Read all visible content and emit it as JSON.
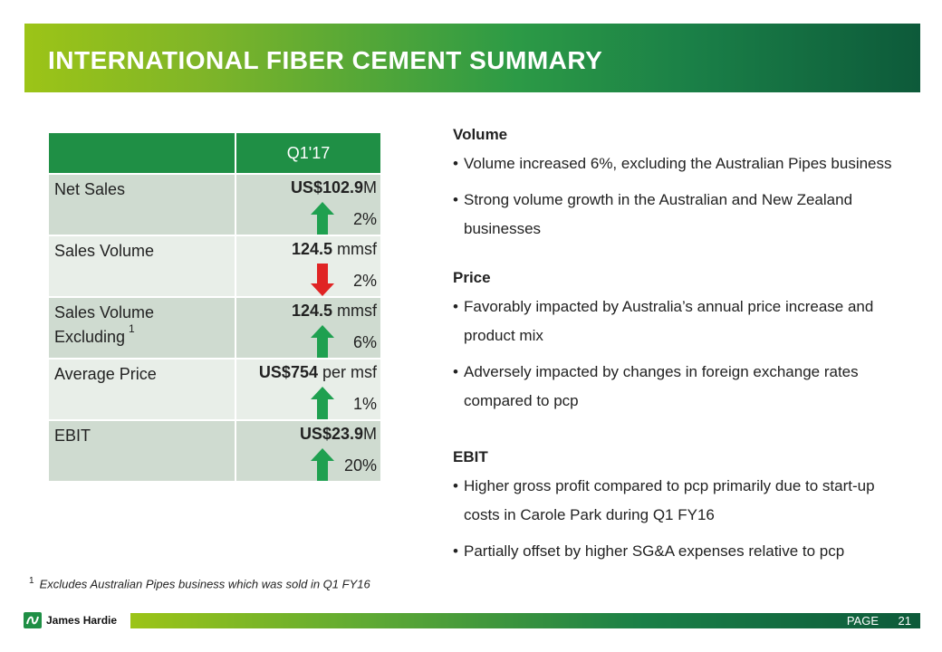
{
  "title": "INTERNATIONAL FIBER CEMENT SUMMARY",
  "table": {
    "period_header": "Q1'17",
    "rows": [
      {
        "label": "Net Sales",
        "label_line2": "",
        "footnote_ref": "",
        "value_bold": "US$102.9",
        "value_unit": "M",
        "change": "2%",
        "direction": "up",
        "arrow_color": "#1fa050"
      },
      {
        "label": "Sales Volume",
        "label_line2": "",
        "footnote_ref": "",
        "value_bold": "124.5",
        "value_unit": " mmsf",
        "change": "2%",
        "direction": "down",
        "arrow_color": "#e02424"
      },
      {
        "label": "Sales Volume",
        "label_line2": "Excluding",
        "footnote_ref": "1",
        "value_bold": "124.5",
        "value_unit": " mmsf",
        "change": "6%",
        "direction": "up",
        "arrow_color": "#1fa050"
      },
      {
        "label": "Average Price",
        "label_line2": "",
        "footnote_ref": "",
        "value_bold": "US$754",
        "value_unit": " per msf",
        "change": "1%",
        "direction": "up",
        "arrow_color": "#1fa050"
      },
      {
        "label": "EBIT",
        "label_line2": "",
        "footnote_ref": "",
        "value_bold": "US$23.9",
        "value_unit": "M",
        "change": "20%",
        "direction": "up",
        "arrow_color": "#1fa050"
      }
    ]
  },
  "sections": [
    {
      "heading": "Volume",
      "bullets": [
        "Volume increased 6%, excluding the Australian Pipes business",
        "Strong volume growth in the Australian and New Zealand businesses"
      ]
    },
    {
      "heading": "Price",
      "bullets": [
        "Favorably impacted by Australia’s annual price increase and product mix",
        "Adversely impacted by changes in foreign exchange rates compared to pcp"
      ]
    },
    {
      "heading": "EBIT",
      "bullets": [
        "Higher gross profit compared to pcp primarily due to start-up costs in Carole Park during Q1 FY16",
        "Partially offset by higher SG&A expenses relative to pcp"
      ]
    }
  ],
  "footnote": {
    "marker": "1",
    "text": "Excludes Australian Pipes business which was sold in Q1 FY16"
  },
  "footer": {
    "logo_text": "James Hardie",
    "page_label": "PAGE",
    "page_number": "21"
  }
}
